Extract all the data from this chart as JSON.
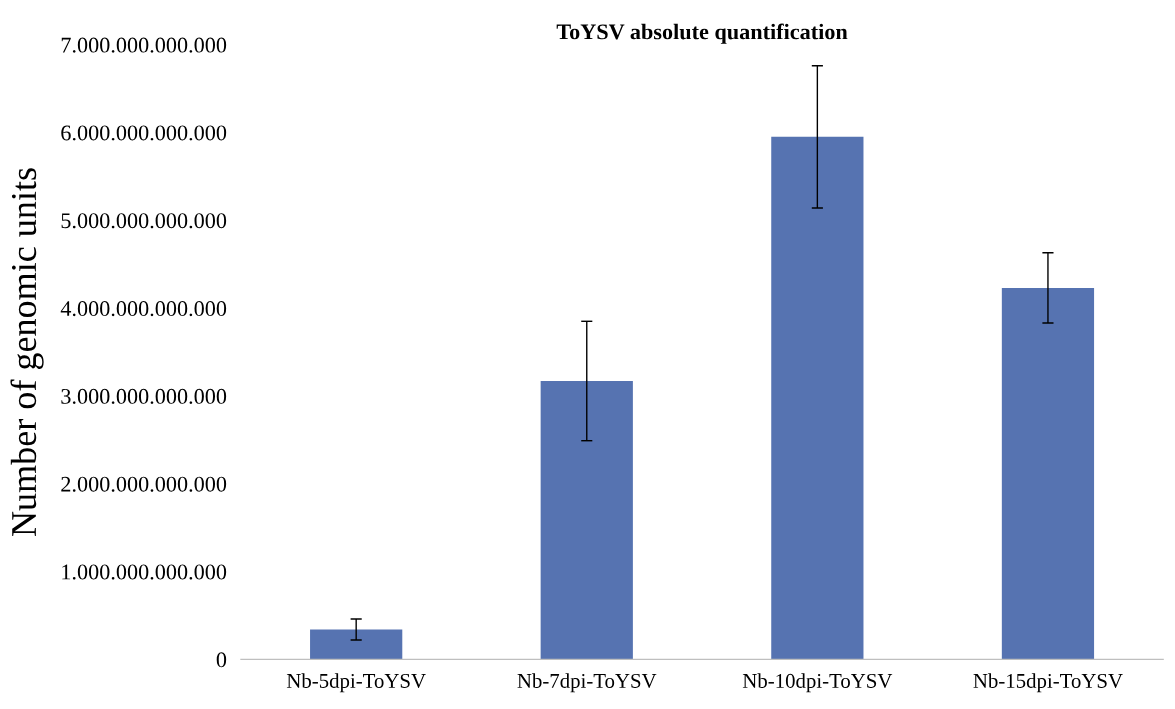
{
  "chart_data": {
    "type": "bar",
    "title": "ToYSV absolute quantification",
    "ylabel": "Number of genomic units",
    "categories": [
      "Nb-5dpi-ToYSV",
      "Nb-7dpi-ToYSV",
      "Nb-10dpi-ToYSV",
      "Nb-15dpi-ToYSV"
    ],
    "values": [
      340000000000,
      3170000000000,
      5950000000000,
      4230000000000
    ],
    "errors": [
      120000000000,
      680000000000,
      810000000000,
      400000000000
    ],
    "color": "#5673b1",
    "ylim": [
      0,
      7000000000000
    ],
    "yticks": [
      {
        "value": 0,
        "label": "0"
      },
      {
        "value": 1000000000000,
        "label": "1.000.000.000.000"
      },
      {
        "value": 2000000000000,
        "label": "2.000.000.000.000"
      },
      {
        "value": 3000000000000,
        "label": "3.000.000.000.000"
      },
      {
        "value": 4000000000000,
        "label": "4.000.000.000.000"
      },
      {
        "value": 5000000000000,
        "label": "5.000.000.000.000"
      },
      {
        "value": 6000000000000,
        "label": "6.000.000.000.000"
      },
      {
        "value": 7000000000000,
        "label": "7.000.000.000.000"
      }
    ],
    "grid": false,
    "legend": false
  }
}
